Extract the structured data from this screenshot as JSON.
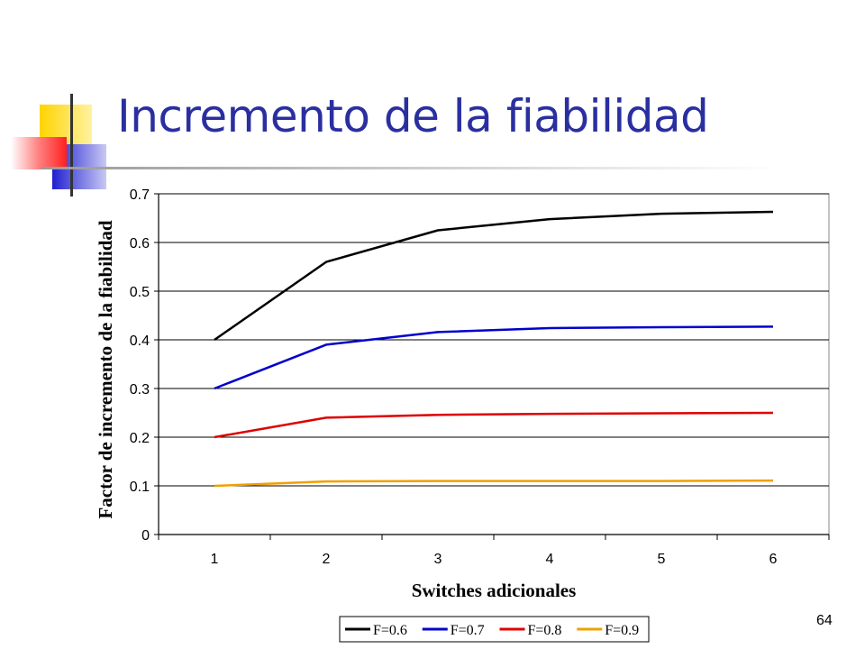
{
  "slide": {
    "title": "Incremento de la fiabilidad",
    "page_number": "64",
    "title_color": "#2a2fa0"
  },
  "chart_data": {
    "type": "line",
    "xlabel": "Switches adicionales",
    "ylabel": "Factor de incremento de la fiabilidad",
    "categories": [
      "1",
      "2",
      "3",
      "4",
      "5",
      "6"
    ],
    "x": [
      1,
      2,
      3,
      4,
      5,
      6
    ],
    "ylim": [
      0,
      0.7
    ],
    "yticks": [
      "0",
      "0.1",
      "0.2",
      "0.3",
      "0.4",
      "0.5",
      "0.6",
      "0.7"
    ],
    "grid": true,
    "legend_position": "bottom",
    "series": [
      {
        "name": "F=0.6",
        "color": "#000000",
        "values": [
          0.4,
          0.56,
          0.625,
          0.648,
          0.659,
          0.663
        ]
      },
      {
        "name": "F=0.7",
        "color": "#0000cc",
        "values": [
          0.3,
          0.39,
          0.416,
          0.424,
          0.426,
          0.427
        ]
      },
      {
        "name": "F=0.8",
        "color": "#dd0000",
        "values": [
          0.2,
          0.24,
          0.246,
          0.248,
          0.249,
          0.25
        ]
      },
      {
        "name": "F=0.9",
        "color": "#f0a000",
        "values": [
          0.1,
          0.109,
          0.11,
          0.11,
          0.11,
          0.111
        ]
      }
    ]
  }
}
